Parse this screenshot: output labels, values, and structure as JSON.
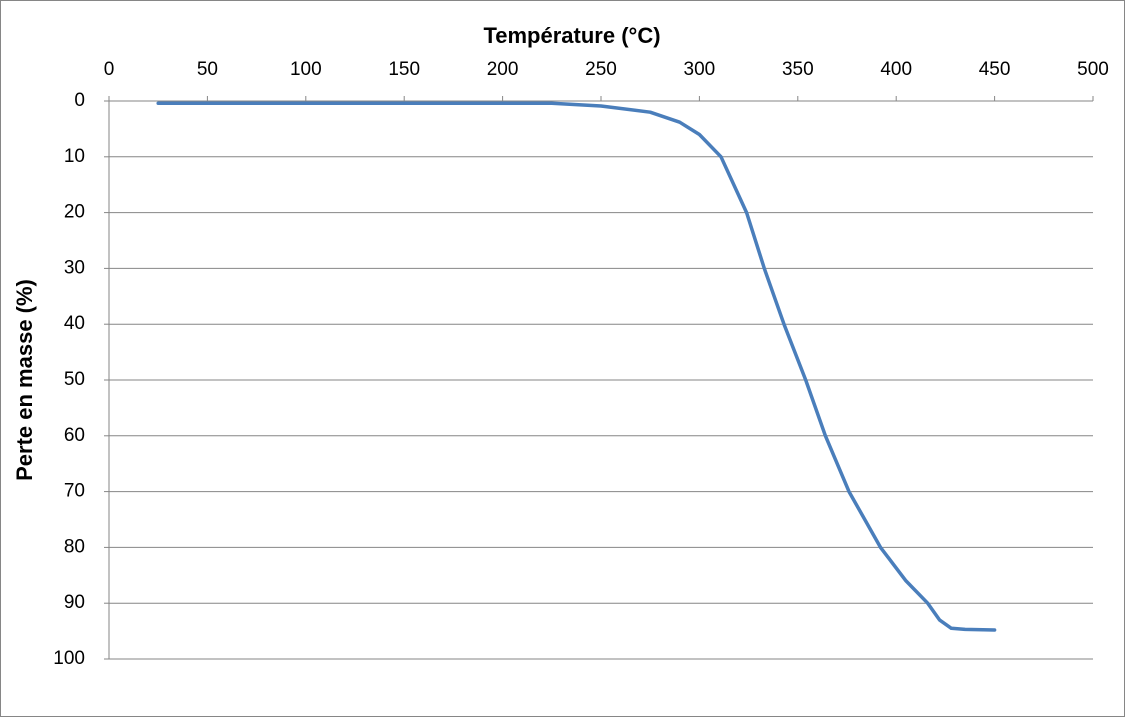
{
  "chart_data": {
    "type": "line",
    "x_label": "Température (°C)",
    "y_label": "Perte en masse (%)",
    "x": [
      25,
      50,
      100,
      150,
      200,
      225,
      250,
      275,
      290,
      300,
      311,
      324,
      333,
      343,
      354,
      364,
      376,
      392,
      405,
      416,
      422,
      428,
      435,
      450
    ],
    "series": [
      {
        "color": "#4a7ebb",
        "values": [
          0.4,
          0.4,
          0.4,
          0.4,
          0.4,
          0.4,
          0.9,
          2,
          3.8,
          6,
          10,
          20,
          30,
          40,
          50,
          60,
          70,
          80,
          86,
          90,
          93,
          94.5,
          94.7,
          94.8
        ]
      }
    ],
    "xlim": [
      0,
      500
    ],
    "xticks": [
      0,
      50,
      100,
      150,
      200,
      250,
      300,
      350,
      400,
      450,
      500
    ],
    "ylim": [
      0,
      100
    ],
    "yticks": [
      0,
      10,
      20,
      30,
      40,
      50,
      60,
      70,
      80,
      90,
      100
    ],
    "y_reversed": true,
    "x_axis_position": "top",
    "grid": true
  }
}
